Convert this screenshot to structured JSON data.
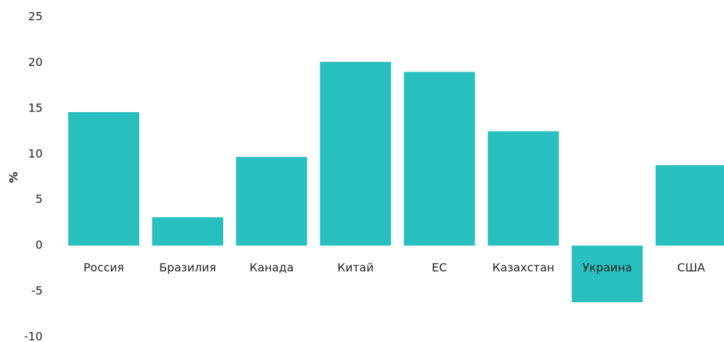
{
  "chart_data": {
    "type": "bar",
    "y_label": "%",
    "categories": [
      "Россия",
      "Бразилия",
      "Канада",
      "Китай",
      "ЕС",
      "Казахстан",
      "Украина",
      "США"
    ],
    "values": [
      14.6,
      3.1,
      9.7,
      20.1,
      19.0,
      12.5,
      -6.2,
      8.8
    ],
    "color": "#2abfbf",
    "ylim": [
      -10,
      25
    ],
    "yticks": [
      -10,
      -5,
      0,
      5,
      10,
      15,
      20,
      25
    ],
    "grid": false
  }
}
